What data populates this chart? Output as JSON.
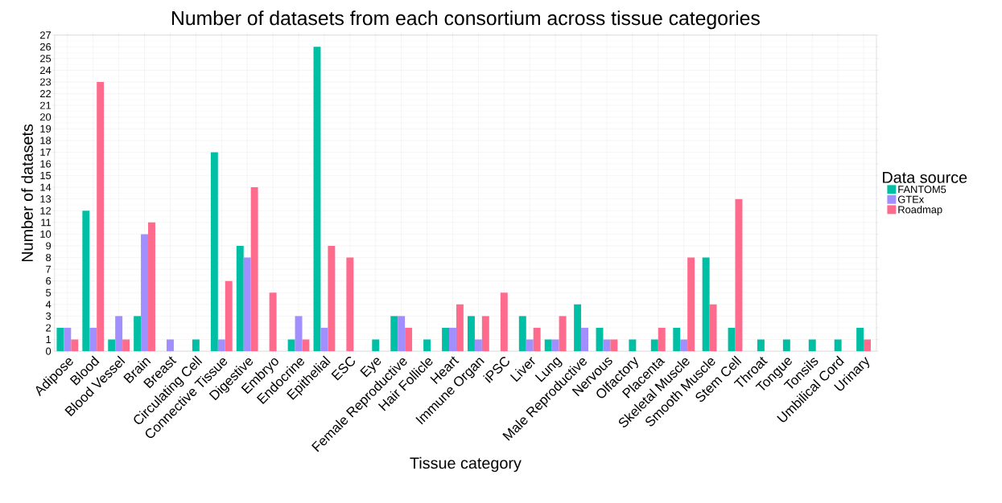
{
  "chart_data": {
    "type": "bar",
    "title": "Number of datasets from each consortium across tissue categories",
    "xlabel": "Tissue category",
    "ylabel": "Number of datasets",
    "legend_title": "Data source",
    "legend": "right",
    "grid": true,
    "categories": [
      "Adipose",
      "Blood",
      "Blood Vessel",
      "Brain",
      "Breast",
      "Circulating Cell",
      "Connective Tissue",
      "Digestive",
      "Embryo",
      "Endocrine",
      "Epithelial",
      "ESC",
      "Eye",
      "Female Reproductive",
      "Hair Follicle",
      "Heart",
      "Immune Organ",
      "iPSC",
      "Liver",
      "Lung",
      "Male Reproductive",
      "Nervous",
      "Olfactory",
      "Placenta",
      "Skeletal Muscle",
      "Smooth Muscle",
      "Stem Cell",
      "Throat",
      "Tongue",
      "Tonsils",
      "Umbilical Cord",
      "Urinary"
    ],
    "ylim": [
      0,
      27
    ],
    "yticks": [
      0,
      1,
      2,
      3,
      4,
      5,
      6,
      7,
      8,
      9,
      10,
      11,
      12,
      13,
      14,
      15,
      16,
      17,
      18,
      19,
      20,
      21,
      22,
      23,
      24,
      25,
      26,
      27
    ],
    "series": [
      {
        "name": "FANTOM5",
        "color": "#00bfa4",
        "values": [
          2,
          12,
          1,
          3,
          null,
          1,
          17,
          9,
          null,
          1,
          26,
          null,
          1,
          3,
          1,
          2,
          3,
          null,
          3,
          1,
          4,
          2,
          1,
          1,
          2,
          8,
          2,
          1,
          1,
          1,
          1,
          2
        ]
      },
      {
        "name": "GTEx",
        "color": "#a18eff",
        "values": [
          2,
          2,
          3,
          10,
          1,
          null,
          1,
          8,
          null,
          3,
          2,
          null,
          null,
          3,
          null,
          2,
          1,
          null,
          1,
          1,
          2,
          1,
          null,
          null,
          1,
          null,
          null,
          null,
          null,
          null,
          null,
          null
        ]
      },
      {
        "name": "Roadmap",
        "color": "#ff6b8d",
        "values": [
          1,
          23,
          1,
          11,
          null,
          null,
          6,
          14,
          5,
          1,
          9,
          8,
          null,
          2,
          null,
          4,
          3,
          5,
          2,
          3,
          null,
          1,
          null,
          2,
          8,
          4,
          13,
          null,
          null,
          null,
          null,
          1
        ]
      }
    ]
  }
}
